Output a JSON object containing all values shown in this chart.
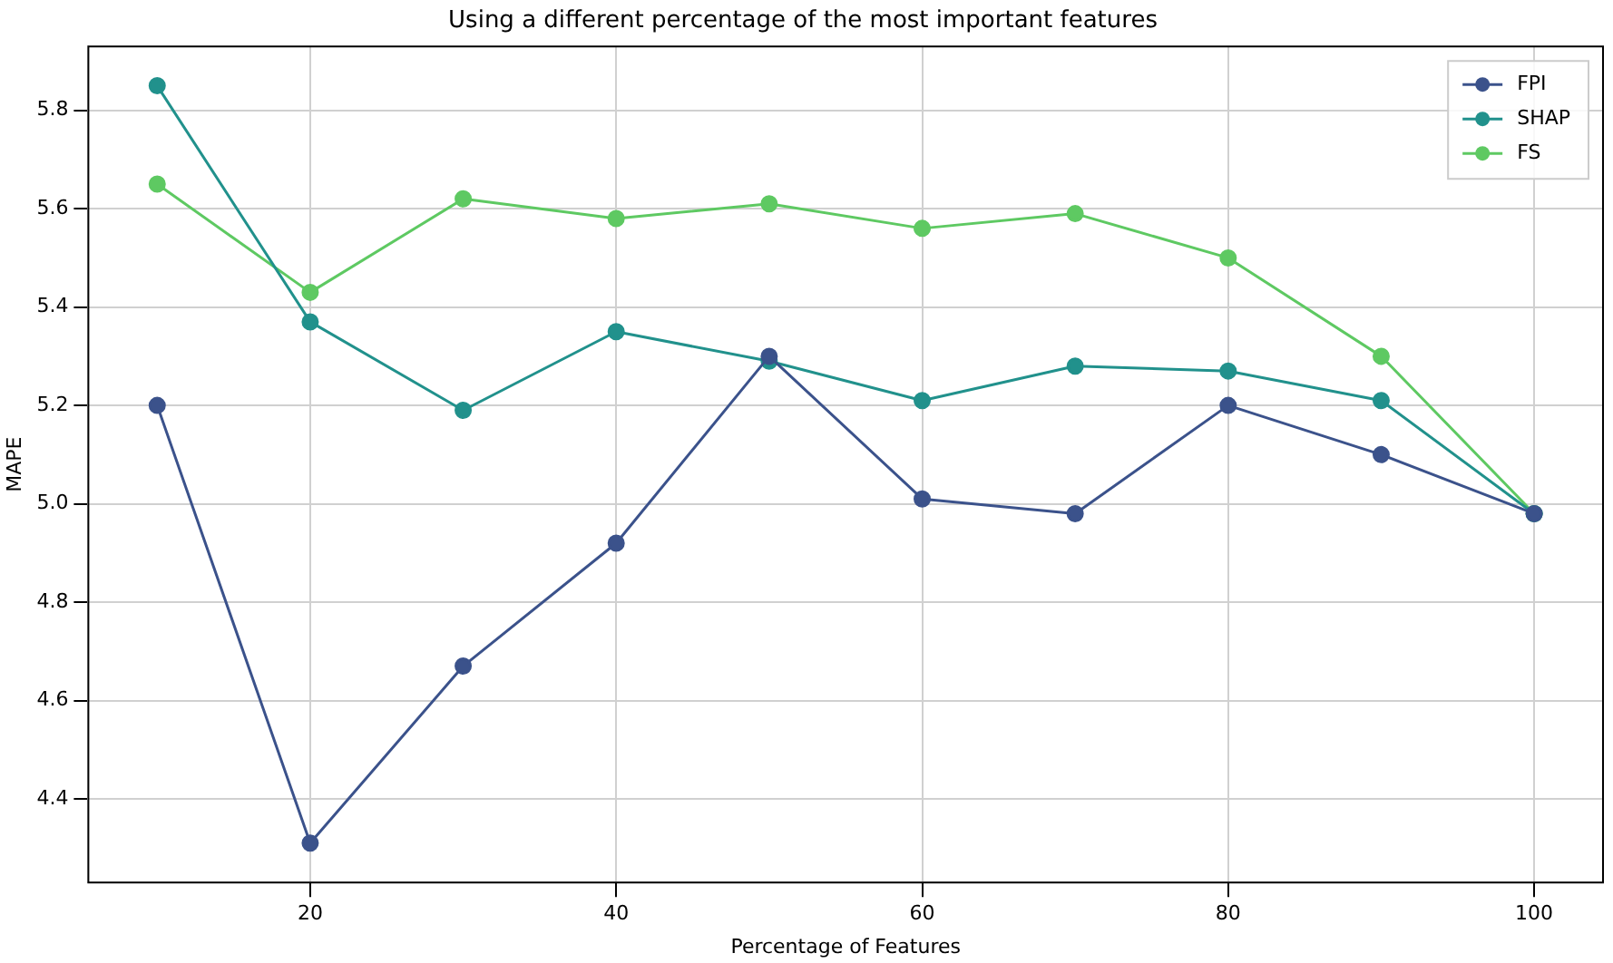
{
  "chart_data": {
    "type": "line",
    "title": "Using a different percentage of the most important features",
    "xlabel": "Percentage of Features",
    "ylabel": "MAPE",
    "x": [
      10,
      20,
      30,
      40,
      50,
      60,
      70,
      80,
      90,
      100
    ],
    "series": [
      {
        "name": "FPI",
        "color": "#3b528b",
        "values": [
          5.2,
          4.31,
          4.67,
          4.92,
          5.3,
          5.01,
          4.98,
          5.2,
          5.1,
          4.98
        ]
      },
      {
        "name": "SHAP",
        "color": "#21918c",
        "values": [
          5.85,
          5.37,
          5.19,
          5.35,
          5.29,
          5.21,
          5.28,
          5.27,
          5.21,
          4.98
        ]
      },
      {
        "name": "FS",
        "color": "#5ec962",
        "values": [
          5.65,
          5.43,
          5.62,
          5.58,
          5.61,
          5.56,
          5.59,
          5.5,
          5.3,
          4.98
        ]
      }
    ],
    "xlim": [
      5.5,
      104.5
    ],
    "xticks": [
      20,
      40,
      60,
      80,
      100
    ],
    "ylim": [
      4.23,
      5.93
    ],
    "yticks": [
      {
        "value": 4.4,
        "label": "4.4"
      },
      {
        "value": 4.6,
        "label": "4.6"
      },
      {
        "value": 4.8,
        "label": "4.8"
      },
      {
        "value": 5.0,
        "label": "5.0"
      },
      {
        "value": 5.2,
        "label": "5.2"
      },
      {
        "value": 5.4,
        "label": "5.4"
      },
      {
        "value": 5.6,
        "label": "5.6"
      },
      {
        "value": 5.8,
        "label": "5.8"
      }
    ],
    "grid": true,
    "legend": "top right",
    "marker": "circle",
    "line_style": "solid"
  }
}
